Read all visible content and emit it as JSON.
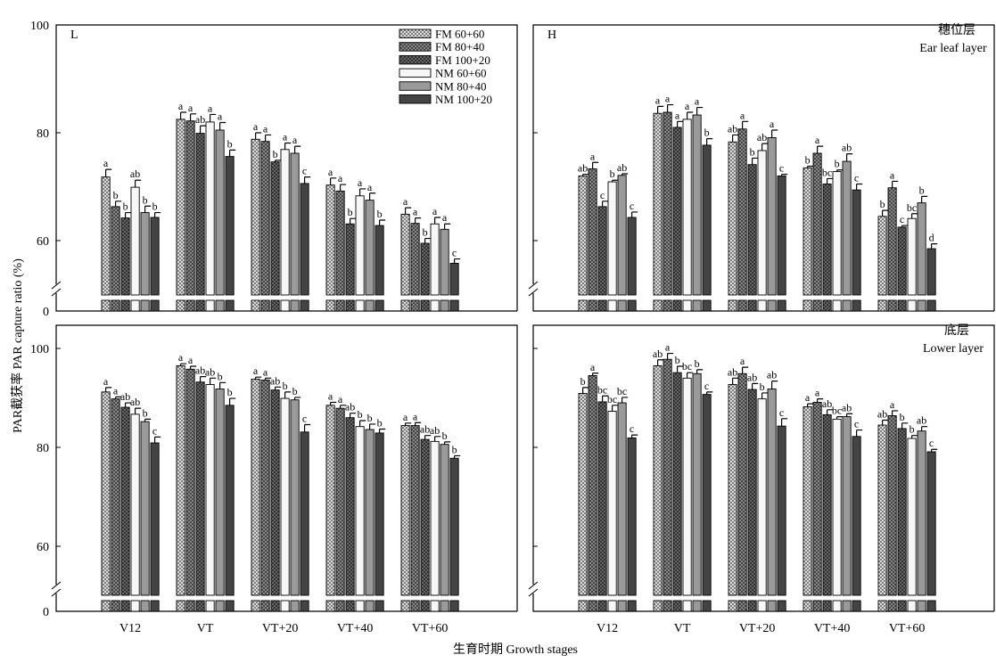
{
  "figure": {
    "ylabel": "PAR截获率 PAR capture ratio (%)",
    "xlabel": "生育时期 Growth stages",
    "legend": [
      "FM 60+60",
      "FM 80+40",
      "FM 100+20",
      "NM 60+60",
      "NM 80+40",
      "NM 100+20"
    ]
  },
  "patterns": {
    "FM 60+60": {
      "fill": "#d8d8d8",
      "hatch": "cross-light"
    },
    "FM 80+40": {
      "fill": "#8a8a8a",
      "hatch": "cross-mid"
    },
    "FM 100+20": {
      "fill": "#3a3a3a",
      "hatch": "cross-dark"
    },
    "NM 60+60": {
      "fill": "#f7f7f7",
      "hatch": "none"
    },
    "NM 80+40": {
      "fill": "#9a9a9a",
      "hatch": "none"
    },
    "NM 100+20": {
      "fill": "#444444",
      "hatch": "none"
    }
  },
  "chart_data": [
    {
      "panel": "top-left",
      "type": "bar",
      "label": "L",
      "title_cn": "",
      "title_en": "",
      "ylim": [
        50,
        100
      ],
      "axis_break": true,
      "ticks": [
        0,
        60,
        80,
        100
      ],
      "categories": [
        "V12",
        "VT",
        "VT+20",
        "VT+40",
        "VT+60"
      ],
      "series": [
        {
          "name": "FM 60+60",
          "values": [
            71.8,
            82.5,
            78.8,
            70.3,
            64.9
          ],
          "err": [
            1.4,
            1.3,
            1.2,
            1.3,
            1.2
          ],
          "letters": [
            "a",
            "a",
            "a",
            "a",
            "a"
          ]
        },
        {
          "name": "FM 80+40",
          "values": [
            66.3,
            82.2,
            78.4,
            69.2,
            63.2
          ],
          "err": [
            1.0,
            1.3,
            1.2,
            1.2,
            1.0
          ],
          "letters": [
            "b",
            "a",
            "a",
            "a",
            "a"
          ]
        },
        {
          "name": "FM 100+20",
          "values": [
            64.2,
            79.9,
            74.6,
            63.1,
            59.5
          ],
          "err": [
            1.0,
            1.4,
            0.3,
            1.0,
            0.9
          ],
          "letters": [
            "b",
            "ab",
            "b",
            "b",
            "b"
          ]
        },
        {
          "name": "NM 60+60",
          "values": [
            69.9,
            82.0,
            76.9,
            68.3,
            63.1
          ],
          "err": [
            1.3,
            1.4,
            1.2,
            1.3,
            1.2
          ],
          "letters": [
            "ab",
            "a",
            "a",
            "a",
            "a"
          ]
        },
        {
          "name": "NM 80+40",
          "values": [
            65.2,
            80.5,
            76.2,
            67.5,
            62.1
          ],
          "err": [
            1.2,
            1.4,
            1.3,
            1.3,
            1.0
          ],
          "letters": [
            "b",
            "a",
            "a",
            "a",
            "a"
          ]
        },
        {
          "name": "NM 100+20",
          "values": [
            64.3,
            75.6,
            70.6,
            62.8,
            55.8
          ],
          "err": [
            0.9,
            1.2,
            1.2,
            1.0,
            0.8
          ],
          "letters": [
            "b",
            "b",
            "c",
            "b",
            "c"
          ]
        }
      ]
    },
    {
      "panel": "top-right",
      "type": "bar",
      "label": "H",
      "title_cn": "穗位层",
      "title_en": "Ear leaf layer",
      "ylim": [
        50,
        100
      ],
      "axis_break": true,
      "ticks": [
        0,
        60,
        80,
        100
      ],
      "categories": [
        "V12",
        "VT",
        "VT+20",
        "VT+40",
        "VT+60"
      ],
      "series": [
        {
          "name": "FM 60+60",
          "values": [
            72.0,
            83.6,
            78.3,
            73.5,
            64.5
          ],
          "err": [
            0.3,
            1.3,
            1.3,
            0.3,
            1.1
          ],
          "letters": [
            "ab",
            "a",
            "ab",
            "b",
            "b"
          ]
        },
        {
          "name": "FM 80+40",
          "values": [
            73.3,
            83.8,
            80.7,
            76.2,
            69.8
          ],
          "err": [
            1.2,
            1.4,
            1.4,
            1.3,
            1.2
          ],
          "letters": [
            "a",
            "a",
            "a",
            "a",
            "a"
          ]
        },
        {
          "name": "FM 100+20",
          "values": [
            66.3,
            81.0,
            74.1,
            70.5,
            62.5
          ],
          "err": [
            1.0,
            1.1,
            1.2,
            1.0,
            0.3
          ],
          "letters": [
            "c",
            "a",
            "b",
            "bc",
            "c"
          ]
        },
        {
          "name": "NM 60+60",
          "values": [
            70.9,
            82.5,
            76.7,
            72.8,
            64.1
          ],
          "err": [
            0.3,
            1.3,
            1.3,
            0.3,
            0.9
          ],
          "letters": [
            "b",
            "a",
            "ab",
            "b",
            "bc"
          ]
        },
        {
          "name": "NM 80+40",
          "values": [
            72.1,
            83.3,
            79.1,
            74.7,
            67.0
          ],
          "err": [
            0.3,
            1.4,
            1.4,
            1.4,
            1.2
          ],
          "letters": [
            "ab",
            "a",
            "a",
            "ab",
            "b"
          ]
        },
        {
          "name": "NM 100+20",
          "values": [
            64.3,
            77.7,
            72.0,
            69.4,
            58.5
          ],
          "err": [
            1.0,
            1.2,
            0.3,
            1.1,
            0.9
          ],
          "letters": [
            "c",
            "b",
            "c",
            "c",
            "d"
          ]
        }
      ]
    },
    {
      "panel": "bottom-left",
      "type": "bar",
      "label": "",
      "title_cn": "",
      "title_en": "",
      "ylim": [
        50,
        100
      ],
      "axis_break": true,
      "ticks": [
        0,
        60,
        80,
        100
      ],
      "categories": [
        "V12",
        "VT",
        "VT+20",
        "VT+40",
        "VT+60"
      ],
      "series": [
        {
          "name": "FM 60+60",
          "values": [
            91.2,
            96.5,
            93.8,
            88.5,
            84.4
          ],
          "err": [
            0.9,
            0.4,
            0.4,
            0.6,
            0.5
          ],
          "letters": [
            "a",
            "a",
            "a",
            "a",
            "a"
          ]
        },
        {
          "name": "FM 80+40",
          "values": [
            89.8,
            95.8,
            93.6,
            87.9,
            84.4
          ],
          "err": [
            0.4,
            0.6,
            0.4,
            0.6,
            0.6
          ],
          "letters": [
            "a",
            "a",
            "a",
            "a",
            "a"
          ]
        },
        {
          "name": "FM 100+20",
          "values": [
            88.1,
            93.2,
            91.6,
            86.0,
            81.6
          ],
          "err": [
            0.9,
            1.1,
            0.6,
            0.9,
            0.8
          ],
          "letters": [
            "ab",
            "ab",
            "ab",
            "ab",
            "ab"
          ]
        },
        {
          "name": "NM 60+60",
          "values": [
            86.7,
            92.7,
            89.9,
            84.2,
            81.2
          ],
          "err": [
            1.2,
            1.3,
            1.3,
            1.2,
            1.0
          ],
          "letters": [
            "ab",
            "ab",
            "b",
            "b",
            "ab"
          ]
        },
        {
          "name": "NM 80+40",
          "values": [
            85.2,
            91.8,
            89.6,
            83.6,
            80.6
          ],
          "err": [
            0.5,
            1.3,
            0.5,
            1.1,
            0.5
          ],
          "letters": [
            "b",
            "b",
            "b",
            "b",
            "b"
          ]
        },
        {
          "name": "NM 100+20",
          "values": [
            80.9,
            88.5,
            83.1,
            82.9,
            77.8
          ],
          "err": [
            1.2,
            1.4,
            1.5,
            0.8,
            0.5
          ],
          "letters": [
            "c",
            "b",
            "c",
            "b",
            "b"
          ]
        }
      ]
    },
    {
      "panel": "bottom-right",
      "type": "bar",
      "label": "",
      "title_cn": "底层",
      "title_en": "Lower layer",
      "ylim": [
        50,
        100
      ],
      "axis_break": true,
      "ticks": [
        0,
        60,
        80,
        100
      ],
      "categories": [
        "V12",
        "VT",
        "VT+20",
        "VT+40",
        "VT+60"
      ],
      "series": [
        {
          "name": "FM 60+60",
          "values": [
            90.9,
            96.5,
            92.7,
            88.2,
            84.5
          ],
          "err": [
            1.2,
            1.2,
            1.3,
            0.6,
            1.0
          ],
          "letters": [
            "b",
            "ab",
            "ab",
            "a",
            "ab"
          ]
        },
        {
          "name": "FM 80+40",
          "values": [
            94.5,
            97.8,
            94.9,
            89.1,
            86.4
          ],
          "err": [
            0.5,
            1.2,
            1.3,
            0.7,
            1.0
          ],
          "letters": [
            "a",
            "a",
            "a",
            "a",
            "a"
          ]
        },
        {
          "name": "FM 100+20",
          "values": [
            89.2,
            95.1,
            91.7,
            86.6,
            83.8
          ],
          "err": [
            1.2,
            1.3,
            1.2,
            1.0,
            1.1
          ],
          "letters": [
            "bc",
            "b",
            "ab",
            "ab",
            "b"
          ]
        },
        {
          "name": "NM 60+60",
          "values": [
            87.3,
            94.0,
            89.8,
            85.7,
            81.8
          ],
          "err": [
            1.2,
            1.1,
            1.2,
            0.5,
            0.6
          ],
          "letters": [
            "bc",
            "bc",
            "b",
            "bc",
            "b"
          ]
        },
        {
          "name": "NM 80+40",
          "values": [
            89.0,
            94.9,
            91.8,
            86.2,
            83.3
          ],
          "err": [
            1.1,
            0.8,
            1.6,
            0.6,
            0.9
          ],
          "letters": [
            "bc",
            "b",
            "ab",
            "ab",
            "ab"
          ]
        },
        {
          "name": "NM 100+20",
          "values": [
            81.9,
            90.7,
            84.3,
            82.2,
            79.1
          ],
          "err": [
            0.6,
            0.5,
            1.5,
            1.3,
            0.5
          ],
          "letters": [
            "c",
            "c",
            "c",
            "c",
            "c"
          ]
        }
      ]
    }
  ]
}
